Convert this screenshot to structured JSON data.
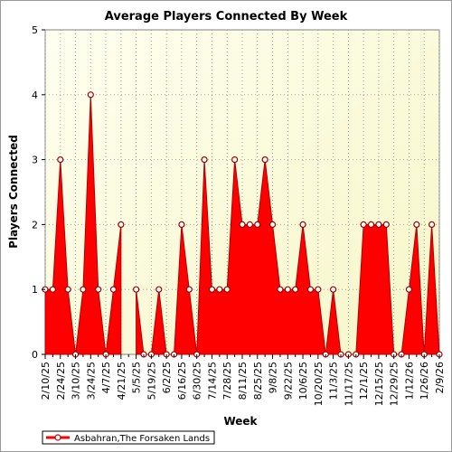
{
  "chart_data": {
    "type": "area",
    "title": "Average Players Connected By Week",
    "xlabel": "Week",
    "ylabel": "Players Connected",
    "ylim": [
      0,
      5
    ],
    "yticks": [
      "0",
      "1",
      "2",
      "3",
      "4",
      "5"
    ],
    "grid": true,
    "legend_placement": "bottom-left",
    "x_tick_labels": [
      "2/10/25",
      "2/24/25",
      "3/10/25",
      "3/24/25",
      "4/7/25",
      "4/21/25",
      "5/5/25",
      "5/19/25",
      "6/2/25",
      "6/16/25",
      "6/30/25",
      "7/14/25",
      "7/28/25",
      "8/11/25",
      "8/25/25",
      "9/8/25",
      "9/22/25",
      "10/6/25",
      "10/20/25",
      "11/3/25",
      "11/17/25",
      "12/1/25",
      "12/15/25",
      "12/29/25",
      "1/12/26",
      "1/26/26",
      "2/9/26"
    ],
    "series": [
      {
        "name": "Asbahran,The Forsaken Lands",
        "color": "#ff0000",
        "values": [
          1,
          1,
          3,
          1,
          0,
          1,
          4,
          1,
          0,
          1,
          2,
          null,
          1,
          0,
          0,
          1,
          0,
          0,
          2,
          1,
          0,
          3,
          1,
          1,
          1,
          3,
          2,
          2,
          2,
          3,
          2,
          1,
          1,
          1,
          2,
          1,
          1,
          0,
          1,
          0,
          0,
          0,
          2,
          2,
          2,
          2,
          0,
          0,
          1,
          2,
          0,
          2,
          0
        ]
      }
    ]
  }
}
